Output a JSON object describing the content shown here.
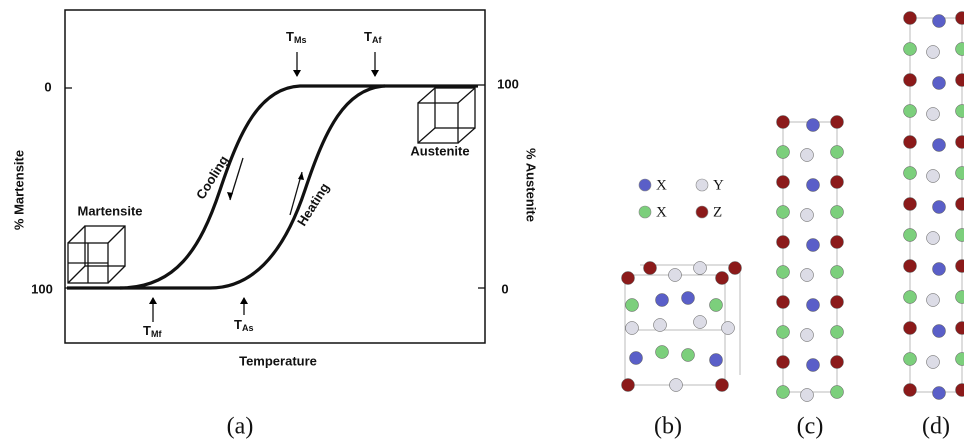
{
  "panel_a": {
    "y_left_label": "% Martensite",
    "y_right_label": "% Austenite",
    "x_label": "Temperature",
    "left_ticks": [
      "0",
      "100"
    ],
    "right_ticks": [
      "100",
      "0"
    ],
    "cooling": "Cooling",
    "heating": "Heating",
    "martensite": "Martensite",
    "austenite": "Austenite",
    "temperatures": [
      {
        "symbol": "T",
        "sub": "Ms"
      },
      {
        "symbol": "T",
        "sub": "Af"
      },
      {
        "symbol": "T",
        "sub": "Mf"
      },
      {
        "symbol": "T",
        "sub": "As"
      }
    ],
    "caption": "(a)"
  },
  "legend": [
    {
      "symbol": "X",
      "color": "#5a5fc8"
    },
    {
      "symbol": "Y",
      "color": "#dcdce6"
    },
    {
      "symbol": "X",
      "color": "#7ccf7c"
    },
    {
      "symbol": "Z",
      "color": "#8b1a1a"
    }
  ],
  "captions": [
    "(b)",
    "(c)",
    "(d)"
  ]
}
